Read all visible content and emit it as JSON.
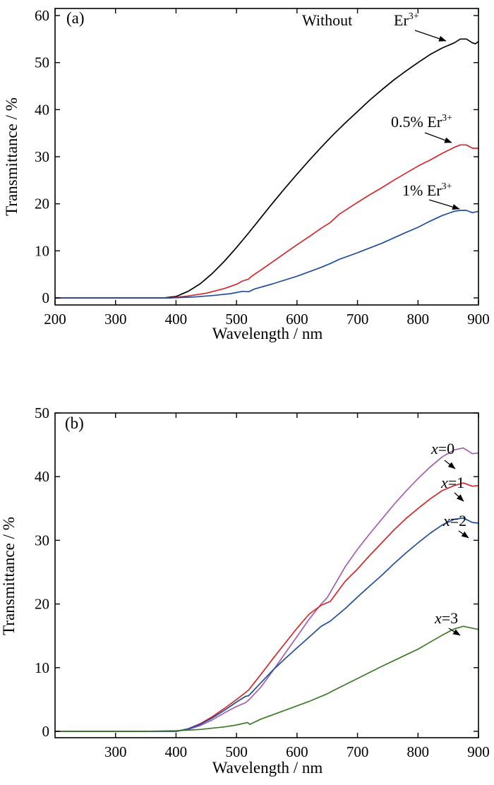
{
  "chart_data": [
    {
      "type": "line",
      "panel_label": "(a)",
      "xlabel": "Wavelength / nm",
      "ylabel": "Transmittance / %",
      "xlim": [
        200,
        900
      ],
      "ylim": [
        -1.5,
        61.5
      ],
      "xticks": [
        200,
        300,
        400,
        500,
        600,
        700,
        800,
        900
      ],
      "yticks": [
        0,
        10,
        20,
        30,
        40,
        50,
        60
      ],
      "series": [
        {
          "color": "#000000",
          "points": [
            [
              200,
              0
            ],
            [
              380,
              0
            ],
            [
              400,
              0.3
            ],
            [
              420,
              1.4
            ],
            [
              440,
              3.0
            ],
            [
              460,
              5.2
            ],
            [
              480,
              7.8
            ],
            [
              500,
              10.7
            ],
            [
              520,
              13.8
            ],
            [
              540,
              17.0
            ],
            [
              560,
              20.2
            ],
            [
              580,
              23.3
            ],
            [
              600,
              26.3
            ],
            [
              620,
              29.2
            ],
            [
              640,
              32.0
            ],
            [
              660,
              34.7
            ],
            [
              680,
              37.2
            ],
            [
              700,
              39.6
            ],
            [
              720,
              42.0
            ],
            [
              740,
              44.2
            ],
            [
              760,
              46.3
            ],
            [
              780,
              48.2
            ],
            [
              800,
              50.0
            ],
            [
              820,
              51.7
            ],
            [
              840,
              53.1
            ],
            [
              860,
              54.2
            ],
            [
              870,
              55.0
            ],
            [
              880,
              55.0
            ],
            [
              890,
              54.2
            ],
            [
              895,
              54.0
            ],
            [
              900,
              54.5
            ]
          ]
        },
        {
          "color": "#d62728",
          "points": [
            [
              200,
              0
            ],
            [
              390,
              0
            ],
            [
              420,
              0.4
            ],
            [
              450,
              1.0
            ],
            [
              480,
              2.0
            ],
            [
              500,
              2.9
            ],
            [
              510,
              3.6
            ],
            [
              520,
              4.0
            ],
            [
              525,
              4.6
            ],
            [
              540,
              5.9
            ],
            [
              560,
              7.7
            ],
            [
              580,
              9.5
            ],
            [
              600,
              11.3
            ],
            [
              620,
              13.0
            ],
            [
              640,
              14.8
            ],
            [
              655,
              16.0
            ],
            [
              670,
              17.8
            ],
            [
              700,
              20.3
            ],
            [
              720,
              21.9
            ],
            [
              740,
              23.4
            ],
            [
              760,
              25.0
            ],
            [
              780,
              26.5
            ],
            [
              800,
              28.0
            ],
            [
              820,
              29.3
            ],
            [
              840,
              30.7
            ],
            [
              860,
              32.0
            ],
            [
              870,
              32.5
            ],
            [
              880,
              32.5
            ],
            [
              890,
              31.8
            ],
            [
              900,
              31.8
            ]
          ]
        },
        {
          "color": "#1f4e9c",
          "points": [
            [
              200,
              0
            ],
            [
              390,
              0
            ],
            [
              430,
              0.2
            ],
            [
              460,
              0.5
            ],
            [
              490,
              0.9
            ],
            [
              510,
              1.4
            ],
            [
              520,
              1.3
            ],
            [
              530,
              1.9
            ],
            [
              560,
              3.0
            ],
            [
              600,
              4.6
            ],
            [
              640,
              6.5
            ],
            [
              655,
              7.3
            ],
            [
              670,
              8.2
            ],
            [
              700,
              9.6
            ],
            [
              740,
              11.6
            ],
            [
              780,
              13.9
            ],
            [
              800,
              15.0
            ],
            [
              820,
              16.3
            ],
            [
              840,
              17.5
            ],
            [
              860,
              18.4
            ],
            [
              870,
              18.6
            ],
            [
              880,
              18.6
            ],
            [
              890,
              18.1
            ],
            [
              900,
              18.4
            ]
          ]
        }
      ],
      "annotations": [
        {
          "text": "Without",
          "sup": ""
        },
        {
          "text": "Er",
          "sup": "3+"
        },
        {
          "text": "0.5% Er",
          "sup": "3+"
        },
        {
          "text": "1% Er",
          "sup": "3+"
        }
      ]
    },
    {
      "type": "line",
      "panel_label": "(b)",
      "xlabel": "Wavelength / nm",
      "ylabel": "Transmittance / %",
      "xlim": [
        200,
        900
      ],
      "ylim": [
        -1,
        50
      ],
      "xticks": [
        300,
        400,
        500,
        600,
        700,
        800,
        900
      ],
      "yticks": [
        0,
        10,
        20,
        30,
        40,
        50
      ],
      "series": [
        {
          "color": "#a35eb0",
          "points": [
            [
              200,
              0
            ],
            [
              400,
              0
            ],
            [
              420,
              0.3
            ],
            [
              440,
              0.9
            ],
            [
              460,
              1.8
            ],
            [
              480,
              2.9
            ],
            [
              500,
              3.9
            ],
            [
              515,
              4.5
            ],
            [
              520,
              4.9
            ],
            [
              540,
              6.9
            ],
            [
              560,
              9.5
            ],
            [
              580,
              12.2
            ],
            [
              600,
              14.9
            ],
            [
              620,
              17.6
            ],
            [
              640,
              20.0
            ],
            [
              650,
              21.0
            ],
            [
              680,
              25.9
            ],
            [
              700,
              28.6
            ],
            [
              720,
              31.0
            ],
            [
              740,
              33.3
            ],
            [
              760,
              35.6
            ],
            [
              780,
              37.7
            ],
            [
              800,
              39.7
            ],
            [
              820,
              41.5
            ],
            [
              840,
              43.1
            ],
            [
              860,
              44.2
            ],
            [
              875,
              44.5
            ],
            [
              890,
              43.6
            ],
            [
              900,
              43.7
            ]
          ]
        },
        {
          "color": "#d62728",
          "points": [
            [
              200,
              0
            ],
            [
              400,
              0
            ],
            [
              420,
              0.4
            ],
            [
              440,
              1.2
            ],
            [
              460,
              2.3
            ],
            [
              480,
              3.6
            ],
            [
              500,
              5.0
            ],
            [
              515,
              6.1
            ],
            [
              520,
              6.5
            ],
            [
              540,
              8.9
            ],
            [
              560,
              11.4
            ],
            [
              580,
              13.8
            ],
            [
              600,
              16.2
            ],
            [
              620,
              18.4
            ],
            [
              640,
              19.8
            ],
            [
              655,
              20.4
            ],
            [
              680,
              23.6
            ],
            [
              700,
              25.5
            ],
            [
              720,
              27.6
            ],
            [
              740,
              29.6
            ],
            [
              760,
              31.6
            ],
            [
              780,
              33.4
            ],
            [
              800,
              35.0
            ],
            [
              820,
              36.5
            ],
            [
              840,
              37.8
            ],
            [
              860,
              38.6
            ],
            [
              875,
              39.0
            ],
            [
              890,
              38.5
            ],
            [
              900,
              38.6
            ]
          ]
        },
        {
          "color": "#1f4e9c",
          "points": [
            [
              200,
              0
            ],
            [
              400,
              0
            ],
            [
              420,
              0.4
            ],
            [
              440,
              1.1
            ],
            [
              460,
              2.1
            ],
            [
              480,
              3.3
            ],
            [
              500,
              4.6
            ],
            [
              515,
              5.5
            ],
            [
              520,
              5.6
            ],
            [
              540,
              7.6
            ],
            [
              560,
              9.6
            ],
            [
              580,
              11.4
            ],
            [
              600,
              13.1
            ],
            [
              620,
              14.8
            ],
            [
              640,
              16.5
            ],
            [
              655,
              17.3
            ],
            [
              680,
              19.3
            ],
            [
              700,
              21.1
            ],
            [
              720,
              22.8
            ],
            [
              740,
              24.5
            ],
            [
              760,
              26.3
            ],
            [
              780,
              28.0
            ],
            [
              800,
              29.6
            ],
            [
              820,
              31.1
            ],
            [
              840,
              32.4
            ],
            [
              860,
              33.3
            ],
            [
              875,
              33.5
            ],
            [
              890,
              32.8
            ],
            [
              900,
              32.7
            ]
          ]
        },
        {
          "color": "#3d7a26",
          "points": [
            [
              200,
              0
            ],
            [
              350,
              0
            ],
            [
              400,
              0.1
            ],
            [
              440,
              0.3
            ],
            [
              480,
              0.7
            ],
            [
              500,
              1.0
            ],
            [
              518,
              1.4
            ],
            [
              522,
              1.1
            ],
            [
              540,
              1.9
            ],
            [
              580,
              3.3
            ],
            [
              620,
              4.7
            ],
            [
              650,
              5.9
            ],
            [
              660,
              6.4
            ],
            [
              700,
              8.3
            ],
            [
              740,
              10.2
            ],
            [
              780,
              12.0
            ],
            [
              800,
              12.9
            ],
            [
              820,
              14.0
            ],
            [
              840,
              15.1
            ],
            [
              860,
              16.1
            ],
            [
              875,
              16.5
            ],
            [
              890,
              16.2
            ],
            [
              900,
              16.0
            ]
          ]
        }
      ],
      "annotations": [
        {
          "text": "x",
          "suffix": "=0"
        },
        {
          "text": "x",
          "suffix": "=1"
        },
        {
          "text": "x",
          "suffix": "=2"
        },
        {
          "text": "x",
          "suffix": "=3"
        }
      ]
    }
  ]
}
